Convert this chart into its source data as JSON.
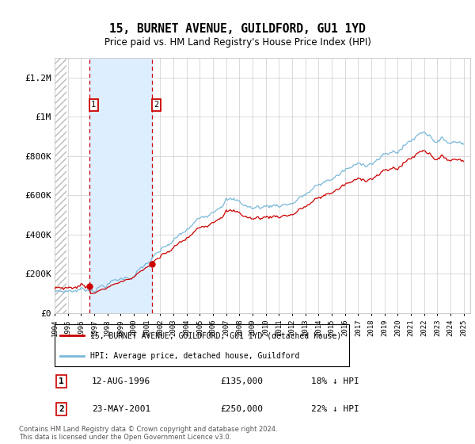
{
  "title": "15, BURNET AVENUE, GUILDFORD, GU1 1YD",
  "subtitle": "Price paid vs. HM Land Registry's House Price Index (HPI)",
  "ylim": [
    0,
    1300000
  ],
  "yticks": [
    0,
    200000,
    400000,
    600000,
    800000,
    1000000,
    1200000
  ],
  "ytick_labels": [
    "£0",
    "£200K",
    "£400K",
    "£600K",
    "£800K",
    "£1M",
    "£1.2M"
  ],
  "sale1_year": 1996.62,
  "sale1_price": 135000,
  "sale1_label": "1",
  "sale2_year": 2001.38,
  "sale2_price": 250000,
  "sale2_label": "2",
  "hpi_color": "#7ab8d9",
  "sold_color": "#cc0000",
  "annotation_box_color": "#cc0000",
  "shade_color": "#ddeeff",
  "grid_color": "#cccccc",
  "hatch_color": "#bbbbbb",
  "background_color": "#ffffff",
  "legend_label_sold": "15, BURNET AVENUE, GUILDFORD, GU1 1YD (detached house)",
  "legend_label_hpi": "HPI: Average price, detached house, Guildford",
  "footer1": "Contains HM Land Registry data © Crown copyright and database right 2024.",
  "footer2": "This data is licensed under the Open Government Licence v3.0.",
  "table_row1": [
    "1",
    "12-AUG-1996",
    "£135,000",
    "18% ↓ HPI"
  ],
  "table_row2": [
    "2",
    "23-MAY-2001",
    "£250,000",
    "22% ↓ HPI"
  ],
  "xmin": 1994.0,
  "xmax": 2025.5,
  "hatch_end": 1994.92,
  "n_months": 373
}
